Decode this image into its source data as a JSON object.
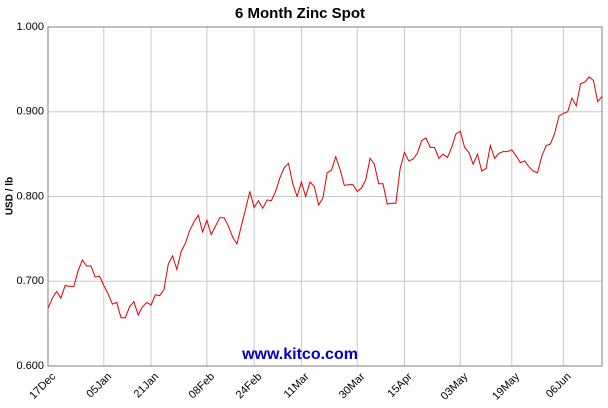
{
  "chart_data": {
    "type": "line",
    "title": "6 Month Zinc Spot",
    "y_label": "USD / lb",
    "annotation": "www.kitco.com",
    "categories": [
      "17Dec",
      null,
      null,
      null,
      null,
      null,
      null,
      null,
      null,
      null,
      null,
      null,
      null,
      "05Jan",
      null,
      null,
      null,
      null,
      null,
      null,
      null,
      null,
      null,
      null,
      "21Jan",
      null,
      null,
      null,
      null,
      null,
      null,
      null,
      null,
      null,
      null,
      null,
      null,
      "08Feb",
      null,
      null,
      null,
      null,
      null,
      null,
      null,
      null,
      null,
      null,
      "24Feb",
      null,
      null,
      null,
      null,
      null,
      null,
      null,
      null,
      null,
      null,
      "11Mar",
      null,
      null,
      null,
      null,
      null,
      null,
      null,
      null,
      null,
      null,
      null,
      null,
      "30Mar",
      null,
      null,
      null,
      null,
      null,
      null,
      null,
      null,
      null,
      null,
      "15Apr",
      null,
      null,
      null,
      null,
      null,
      null,
      null,
      null,
      null,
      null,
      null,
      null,
      "03May",
      null,
      null,
      null,
      null,
      null,
      null,
      null,
      null,
      null,
      null,
      null,
      "19May",
      null,
      null,
      null,
      null,
      null,
      null,
      null,
      null,
      null,
      null,
      null,
      "06Jun",
      null,
      null,
      null,
      null,
      null,
      null,
      null,
      null,
      null
    ],
    "series": [
      {
        "name": "Zinc",
        "color": "#e00000",
        "values": [
          0.668,
          0.68,
          0.688,
          0.68,
          0.695,
          0.694,
          0.694,
          0.712,
          0.725,
          0.718,
          0.718,
          0.705,
          0.706,
          0.695,
          0.685,
          0.673,
          0.675,
          0.657,
          0.657,
          0.67,
          0.676,
          0.66,
          0.67,
          0.675,
          0.672,
          0.684,
          0.683,
          0.69,
          0.72,
          0.73,
          0.714,
          0.735,
          0.745,
          0.76,
          0.77,
          0.778,
          0.758,
          0.772,
          0.755,
          0.765,
          0.775,
          0.775,
          0.765,
          0.752,
          0.744,
          0.765,
          0.785,
          0.806,
          0.787,
          0.795,
          0.786,
          0.796,
          0.795,
          0.806,
          0.822,
          0.834,
          0.839,
          0.815,
          0.8,
          0.817,
          0.8,
          0.817,
          0.812,
          0.79,
          0.798,
          0.828,
          0.831,
          0.847,
          0.832,
          0.813,
          0.814,
          0.814,
          0.806,
          0.81,
          0.82,
          0.845,
          0.838,
          0.815,
          0.815,
          0.791,
          0.792,
          0.792,
          0.833,
          0.852,
          0.842,
          0.844,
          0.851,
          0.866,
          0.869,
          0.858,
          0.858,
          0.845,
          0.85,
          0.846,
          0.858,
          0.874,
          0.877,
          0.858,
          0.852,
          0.838,
          0.85,
          0.83,
          0.833,
          0.86,
          0.845,
          0.851,
          0.853,
          0.853,
          0.855,
          0.848,
          0.84,
          0.842,
          0.835,
          0.83,
          0.828,
          0.848,
          0.86,
          0.862,
          0.875,
          0.895,
          0.898,
          0.9,
          0.916,
          0.907,
          0.933,
          0.935,
          0.941,
          0.937,
          0.912,
          0.918
        ]
      }
    ],
    "ylim": [
      0.6,
      1.0
    ],
    "yticks": [
      {
        "value": 0.6,
        "label": "0.600"
      },
      {
        "value": 0.7,
        "label": "0.700"
      },
      {
        "value": 0.8,
        "label": "0.800"
      },
      {
        "value": 0.9,
        "label": "0.900"
      },
      {
        "value": 1.0,
        "label": "1.000"
      }
    ],
    "grid": true
  }
}
